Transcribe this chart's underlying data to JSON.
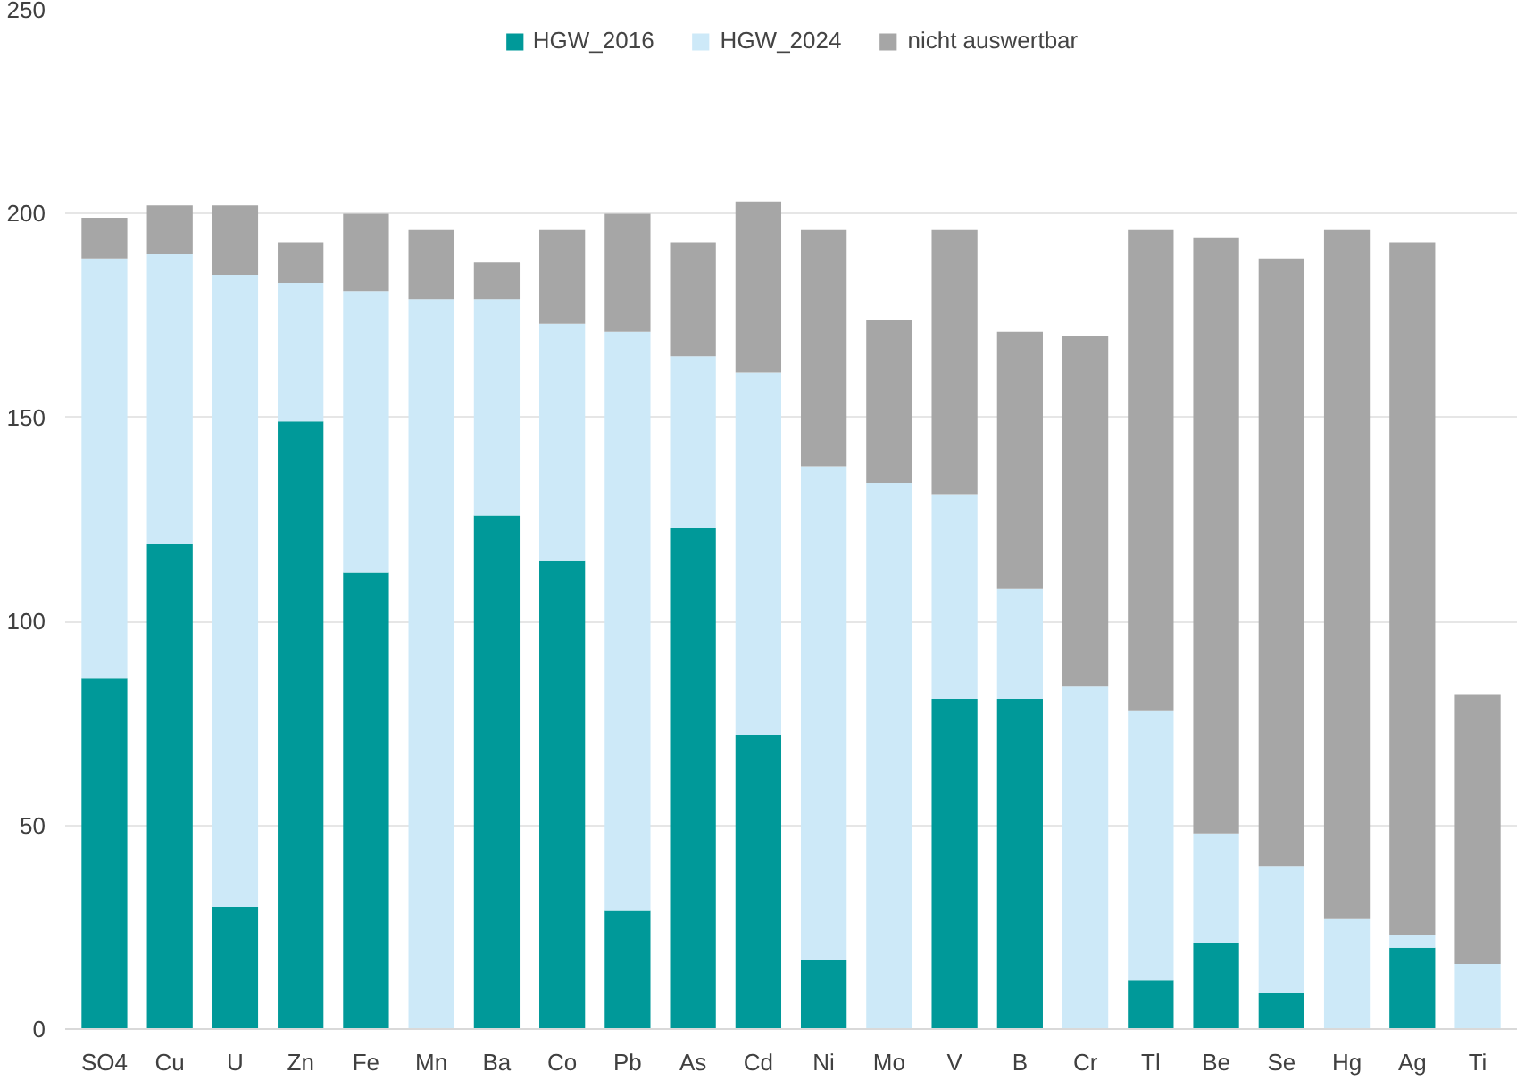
{
  "chart_data": {
    "type": "bar",
    "stacked": true,
    "categories": [
      "SO4",
      "Cu",
      "U",
      "Zn",
      "Fe",
      "Mn",
      "Ba",
      "Co",
      "Pb",
      "As",
      "Cd",
      "Ni",
      "Mo",
      "V",
      "B",
      "Cr",
      "Tl",
      "Be",
      "Se",
      "Hg",
      "Ag",
      "Ti"
    ],
    "series": [
      {
        "name": "HGW_2016",
        "color": "#009999",
        "values": [
          86,
          119,
          30,
          149,
          112,
          0,
          126,
          115,
          29,
          123,
          72,
          17,
          0,
          81,
          81,
          0,
          12,
          21,
          9,
          0,
          20,
          0
        ]
      },
      {
        "name": "HGW_2024",
        "color": "#cde9f8",
        "values": [
          103,
          71,
          155,
          34,
          69,
          179,
          53,
          58,
          142,
          42,
          89,
          121,
          134,
          50,
          27,
          84,
          66,
          27,
          31,
          27,
          3,
          16
        ]
      },
      {
        "name": "nicht auswertbar",
        "color": "#a6a6a6",
        "values": [
          10,
          12,
          17,
          10,
          19,
          17,
          9,
          23,
          29,
          28,
          42,
          58,
          40,
          65,
          63,
          86,
          118,
          146,
          149,
          169,
          170,
          66
        ]
      }
    ],
    "ylim": [
      0,
      250
    ],
    "yticks": [
      0,
      50,
      100,
      150,
      200,
      250
    ],
    "grid": "y",
    "legend": "top"
  }
}
